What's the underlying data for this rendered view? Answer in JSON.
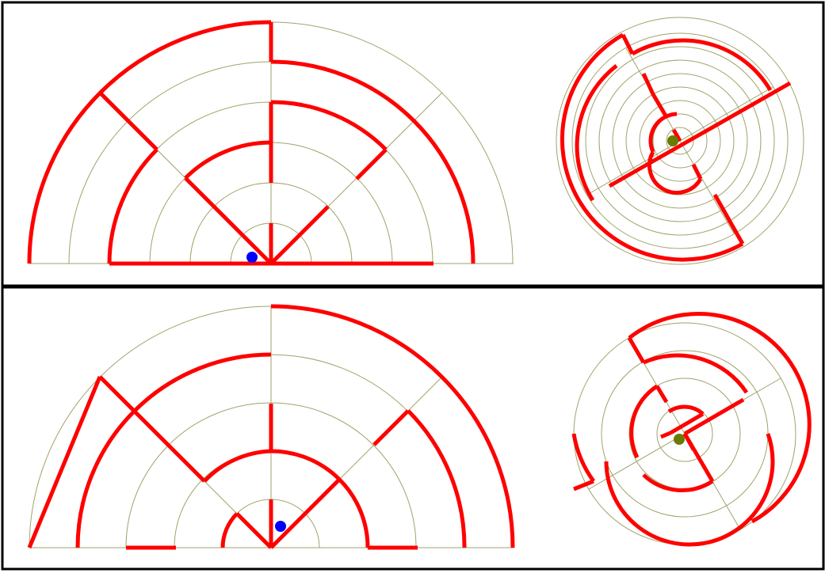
{
  "puzzles": [
    {
      "id": "puzzle-1",
      "colors": {
        "wall": "#ff0000",
        "guide": "#a2a26c",
        "semi_marker": "#0000ff",
        "circle_marker": "#6b7a00",
        "frame": "#000000"
      }
    },
    {
      "id": "puzzle-2",
      "colors": {
        "wall": "#ff0000",
        "guide": "#a2a26c",
        "semi_marker": "#0000ff",
        "circle_marker": "#6b7a00",
        "frame": "#000000"
      }
    }
  ]
}
